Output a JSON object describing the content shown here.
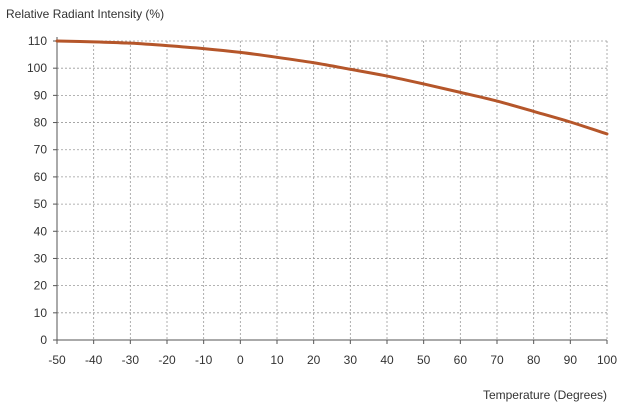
{
  "chart_data": {
    "type": "line",
    "title": "",
    "ylabel": "Relative Radiant Intensity (%)",
    "xlabel": "Temperature (Degrees)",
    "xlim": [
      -50,
      100
    ],
    "ylim": [
      0,
      110
    ],
    "x_ticks": [
      -50,
      -40,
      -30,
      -20,
      -10,
      0,
      10,
      20,
      30,
      40,
      50,
      60,
      70,
      80,
      90,
      100
    ],
    "y_ticks": [
      0,
      10,
      20,
      30,
      40,
      50,
      60,
      70,
      80,
      90,
      100,
      110
    ],
    "grid": true,
    "legend": "none",
    "series": [
      {
        "color": "#b5562a",
        "x": [
          -50,
          -40,
          -30,
          -20,
          -10,
          0,
          10,
          20,
          30,
          40,
          50,
          60,
          70,
          80,
          90,
          100
        ],
        "y": [
          110,
          109.7,
          109.2,
          108.3,
          107.2,
          105.8,
          104.0,
          102.0,
          99.6,
          97.1,
          94.2,
          91.1,
          87.9,
          84.1,
          80.2,
          75.8
        ]
      }
    ]
  }
}
